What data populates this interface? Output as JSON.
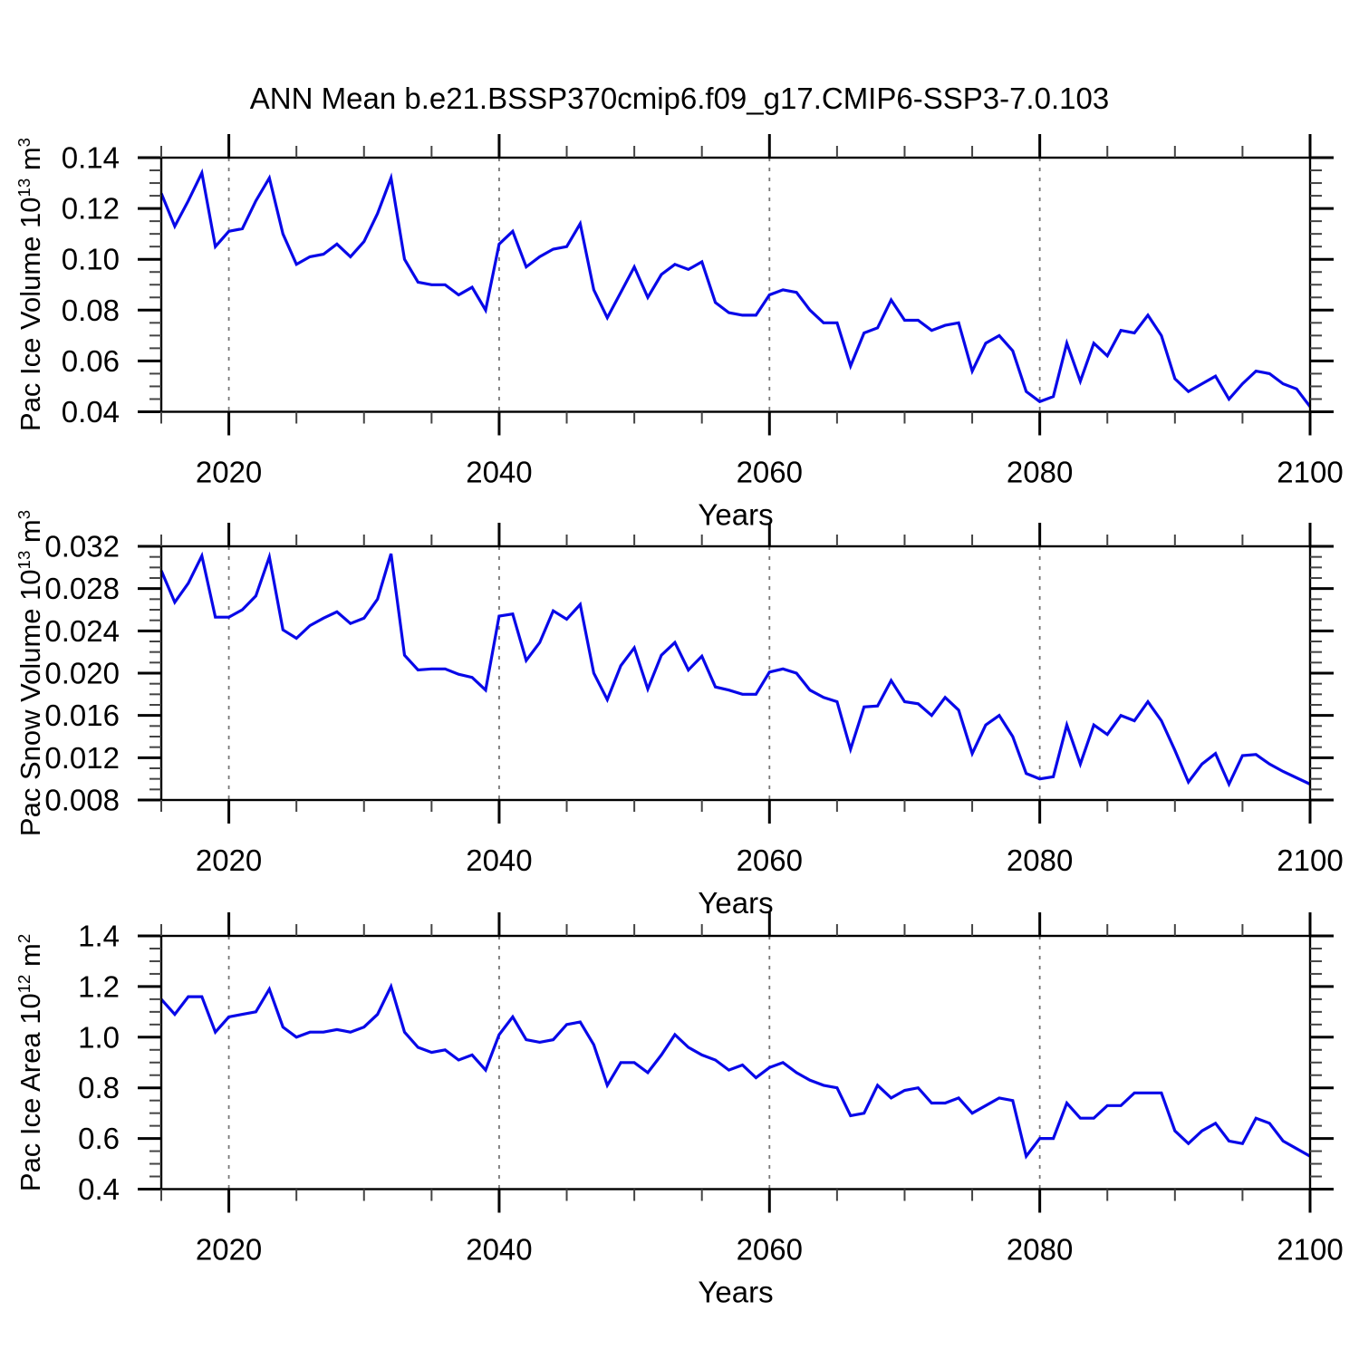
{
  "title": "ANN Mean b.e21.BSSP370cmip6.f09_g17.CMIP6-SSP3-7.0.103",
  "style": {
    "line_color": "#0808e8",
    "grid_color": "#777777",
    "axis_color": "#000000",
    "minor_tick_color": "#444444",
    "text_color": "#000000",
    "background": "#ffffff"
  },
  "axes": {
    "xlabel": "Years",
    "x_start": 2015,
    "x_end": 2100,
    "x_major_ticks": [
      2020,
      2040,
      2060,
      2080,
      2100
    ],
    "x_minor_step": 5,
    "x_gridlines": [
      2020,
      2040,
      2060,
      2080
    ]
  },
  "chart_data": [
    {
      "type": "line",
      "series_name": "Pac Ice Volume",
      "ylabel": {
        "text": "Pac Ice Volume 10",
        "exp": "13",
        "unit": " m",
        "unit_exp": "3"
      },
      "ylim": [
        0.04,
        0.14
      ],
      "y_major_step": 0.02,
      "y_minor_step": 0.005,
      "y_decimals": 2,
      "x0": 2015,
      "values": [
        0.126,
        0.113,
        0.123,
        0.134,
        0.105,
        0.111,
        0.112,
        0.123,
        0.132,
        0.11,
        0.098,
        0.101,
        0.102,
        0.106,
        0.101,
        0.107,
        0.118,
        0.132,
        0.1,
        0.091,
        0.09,
        0.09,
        0.086,
        0.089,
        0.08,
        0.106,
        0.111,
        0.097,
        0.101,
        0.104,
        0.105,
        0.114,
        0.088,
        0.077,
        0.087,
        0.097,
        0.085,
        0.094,
        0.098,
        0.096,
        0.099,
        0.083,
        0.079,
        0.078,
        0.078,
        0.086,
        0.088,
        0.087,
        0.08,
        0.075,
        0.075,
        0.058,
        0.071,
        0.073,
        0.084,
        0.076,
        0.076,
        0.072,
        0.074,
        0.075,
        0.056,
        0.067,
        0.07,
        0.064,
        0.048,
        0.044,
        0.046,
        0.067,
        0.052,
        0.067,
        0.062,
        0.072,
        0.071,
        0.078,
        0.07,
        0.053,
        0.048,
        0.051,
        0.054,
        0.045,
        0.051,
        0.056,
        0.055,
        0.051,
        0.049,
        0.042
      ]
    },
    {
      "type": "line",
      "series_name": "Pac Snow Volume",
      "ylabel": {
        "text": "Pac Snow Volume 10",
        "exp": "13",
        "unit": " m",
        "unit_exp": "3"
      },
      "ylim": [
        0.008,
        0.032
      ],
      "y_major_step": 0.004,
      "y_minor_step": 0.001,
      "y_decimals": 3,
      "x0": 2015,
      "values": [
        0.0297,
        0.0267,
        0.0285,
        0.0311,
        0.0253,
        0.0253,
        0.026,
        0.0273,
        0.031,
        0.0241,
        0.0233,
        0.0245,
        0.0252,
        0.0258,
        0.0247,
        0.0252,
        0.027,
        0.0313,
        0.0217,
        0.0203,
        0.0204,
        0.0204,
        0.0199,
        0.0196,
        0.0184,
        0.0254,
        0.0256,
        0.0212,
        0.0229,
        0.0259,
        0.0251,
        0.0265,
        0.02,
        0.0175,
        0.0207,
        0.0224,
        0.0185,
        0.0217,
        0.0229,
        0.0203,
        0.0216,
        0.0187,
        0.0184,
        0.018,
        0.018,
        0.0201,
        0.0204,
        0.02,
        0.0184,
        0.0177,
        0.0173,
        0.0128,
        0.0168,
        0.0169,
        0.0193,
        0.0173,
        0.0171,
        0.016,
        0.0177,
        0.0165,
        0.0124,
        0.0151,
        0.016,
        0.014,
        0.0105,
        0.01,
        0.0102,
        0.0151,
        0.0114,
        0.0151,
        0.0142,
        0.016,
        0.0155,
        0.0173,
        0.0155,
        0.0127,
        0.0097,
        0.0114,
        0.0124,
        0.0095,
        0.0122,
        0.0123,
        0.0114,
        0.0107,
        0.0101,
        0.0095
      ]
    },
    {
      "type": "line",
      "series_name": "Pac Ice Area",
      "ylabel": {
        "text": "Pac Ice Area 10",
        "exp": "12",
        "unit": " m",
        "unit_exp": "2"
      },
      "ylim": [
        0.4,
        1.4
      ],
      "y_major_step": 0.2,
      "y_minor_step": 0.05,
      "y_decimals": 1,
      "x0": 2015,
      "values": [
        1.15,
        1.09,
        1.16,
        1.16,
        1.02,
        1.08,
        1.09,
        1.1,
        1.19,
        1.04,
        1.0,
        1.02,
        1.02,
        1.03,
        1.02,
        1.04,
        1.09,
        1.2,
        1.02,
        0.96,
        0.94,
        0.95,
        0.91,
        0.93,
        0.87,
        1.01,
        1.08,
        0.99,
        0.98,
        0.99,
        1.05,
        1.06,
        0.97,
        0.81,
        0.9,
        0.9,
        0.86,
        0.93,
        1.01,
        0.96,
        0.93,
        0.91,
        0.87,
        0.89,
        0.84,
        0.88,
        0.9,
        0.86,
        0.83,
        0.81,
        0.8,
        0.69,
        0.7,
        0.81,
        0.76,
        0.79,
        0.8,
        0.74,
        0.74,
        0.76,
        0.7,
        0.73,
        0.76,
        0.75,
        0.53,
        0.6,
        0.6,
        0.74,
        0.68,
        0.68,
        0.73,
        0.73,
        0.78,
        0.78,
        0.78,
        0.63,
        0.58,
        0.63,
        0.66,
        0.59,
        0.58,
        0.68,
        0.66,
        0.59,
        0.56,
        0.53
      ]
    }
  ]
}
